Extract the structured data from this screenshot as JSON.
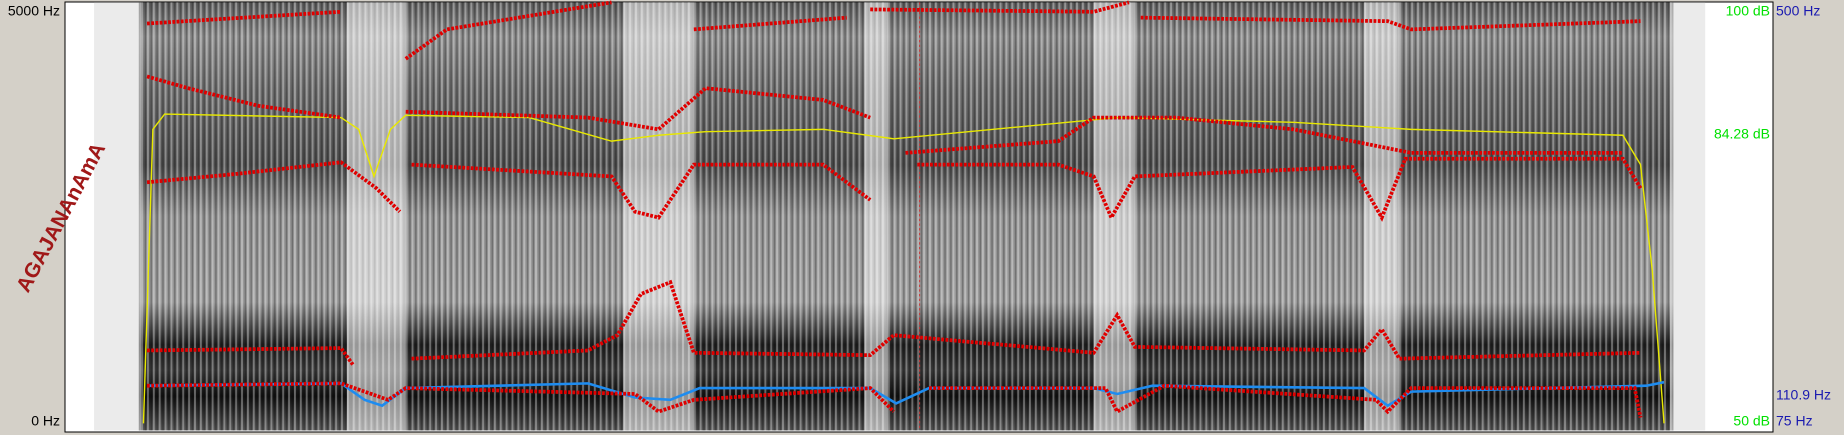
{
  "left_axis": {
    "top": "5000 Hz",
    "bottom": "0 Hz"
  },
  "intensity_axis": {
    "top": "100 dB",
    "middle": "84.28 dB",
    "bottom": "50 dB"
  },
  "pitch_axis": {
    "top": "500 Hz",
    "middle": "110.9 Hz",
    "bottom": "75 Hz"
  },
  "annotation": "AGAJANAnAmA"
}
